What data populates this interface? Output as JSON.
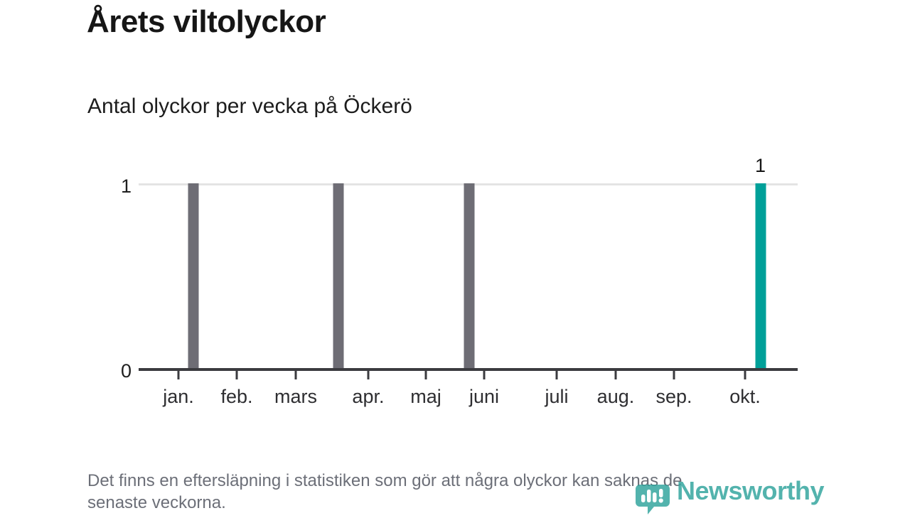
{
  "header": {
    "title": "Årets viltolyckor",
    "subtitle": "Antal olyckor per vecka på Öckerö"
  },
  "chart_data": {
    "type": "bar",
    "title": "Årets viltolyckor",
    "subtitle": "Antal olyckor per vecka på Öckerö",
    "ylabel": "",
    "xlabel": "",
    "ylim": [
      0,
      1
    ],
    "grid": "single horizontal gridline at y=1",
    "legend": "none",
    "yticks": {
      "top": "1",
      "bottom": "0"
    },
    "x_ticks": [
      {
        "label": "jan.",
        "x_pct": 6.04
      },
      {
        "label": "feb.",
        "x_pct": 14.89
      },
      {
        "label": "mars",
        "x_pct": 23.84
      },
      {
        "label": "apr.",
        "x_pct": 34.84
      },
      {
        "label": "maj",
        "x_pct": 43.58
      },
      {
        "label": "juni",
        "x_pct": 52.43
      },
      {
        "label": "juli",
        "x_pct": 63.43
      },
      {
        "label": "aug.",
        "x_pct": 72.38
      },
      {
        "label": "sep.",
        "x_pct": 81.23
      },
      {
        "label": "okt.",
        "x_pct": 92.02
      }
    ],
    "bars": [
      {
        "month_hint": "januari",
        "value": 1,
        "x_pct": 8.36,
        "color": "#6e6d75",
        "value_label": ""
      },
      {
        "month_hint": "slutet av mars",
        "value": 1,
        "x_pct": 30.26,
        "color": "#6e6d75",
        "value_label": ""
      },
      {
        "month_hint": "slutet av maj",
        "value": 1,
        "x_pct": 50.16,
        "color": "#6e6d75",
        "value_label": ""
      },
      {
        "month_hint": "oktober (senaste)",
        "value": 1,
        "x_pct": 94.34,
        "color": "#00a099",
        "value_label": "1",
        "highlight": true
      }
    ],
    "colors": {
      "bar_default": "#6e6d75",
      "bar_highlight": "#00a099",
      "gridline": "#e4e4e4",
      "axis": "#3b3b3f"
    }
  },
  "footer": {
    "note_line1": "Det finns en eftersläpning i statistiken som gör att några olyckor kan saknas de",
    "note_line2": "senaste veckorna."
  },
  "branding": {
    "logo_text": "Newsworthy",
    "logo_color": "#2ea39c",
    "logo_icon": "speech-bubble-bar-chart-icon"
  }
}
